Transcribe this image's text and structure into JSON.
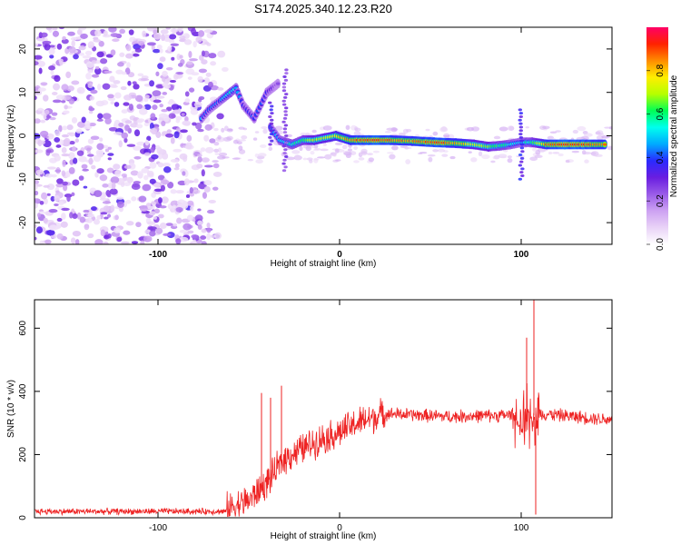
{
  "title": "S174.2025.340.12.23.R20",
  "chart_data": [
    {
      "type": "heatmap",
      "name": "spectrogram",
      "xlabel": "Height of straight line (km)",
      "ylabel": "Frequency (Hz)",
      "xlim": [
        -168,
        150
      ],
      "ylim": [
        -25,
        25
      ],
      "xticks": [
        -100,
        0,
        100
      ],
      "yticks": [
        -20,
        -10,
        0,
        10,
        20
      ],
      "colorbar": {
        "label": "Normalized spectral amplitude",
        "range": [
          0,
          1
        ],
        "ticks": [
          0.0,
          0.2,
          0.4,
          0.6,
          0.8
        ],
        "colormap": [
          "#ffffff",
          "#e9d3f7",
          "#cda2f2",
          "#9a5ce8",
          "#6a1ee0",
          "#2a2aff",
          "#00aaff",
          "#00ffee",
          "#00ff55",
          "#b6ff00",
          "#ffee00",
          "#ff8c00",
          "#ff2200",
          "#ff0066"
        ]
      },
      "noise_region": {
        "x": [
          -168,
          -62
        ],
        "freq": [
          -25,
          25
        ],
        "amplitude": [
          0.05,
          0.35
        ]
      },
      "ridge": [
        {
          "x": -76,
          "freq": 4,
          "amp": 0.45
        },
        {
          "x": -72,
          "freq": 6,
          "amp": 0.42
        },
        {
          "x": -66,
          "freq": 8,
          "amp": 0.4
        },
        {
          "x": -60,
          "freq": 10,
          "amp": 0.55
        },
        {
          "x": -57,
          "freq": 11,
          "amp": 0.5
        },
        {
          "x": -53,
          "freq": 7,
          "amp": 0.35
        },
        {
          "x": -47,
          "freq": 4,
          "amp": 0.4
        },
        {
          "x": -40,
          "freq": 10,
          "amp": 0.35
        },
        {
          "x": -34,
          "freq": 12,
          "amp": 0.25
        },
        {
          "x": -38,
          "freq": 2,
          "amp": 0.45
        },
        {
          "x": -33,
          "freq": -1,
          "amp": 0.5
        },
        {
          "x": -26,
          "freq": -2,
          "amp": 0.58
        },
        {
          "x": -20,
          "freq": -1,
          "amp": 0.62
        },
        {
          "x": -14,
          "freq": -1,
          "amp": 0.7
        },
        {
          "x": -8,
          "freq": -0.5,
          "amp": 0.72
        },
        {
          "x": -2,
          "freq": 0,
          "amp": 0.78
        },
        {
          "x": 6,
          "freq": -1,
          "amp": 0.85
        },
        {
          "x": 16,
          "freq": -1,
          "amp": 0.92
        },
        {
          "x": 28,
          "freq": -1,
          "amp": 0.88
        },
        {
          "x": 40,
          "freq": -1.2,
          "amp": 0.84
        },
        {
          "x": 52,
          "freq": -1.5,
          "amp": 0.9
        },
        {
          "x": 64,
          "freq": -1.7,
          "amp": 0.85
        },
        {
          "x": 74,
          "freq": -2,
          "amp": 0.72
        },
        {
          "x": 82,
          "freq": -2.5,
          "amp": 0.68
        },
        {
          "x": 88,
          "freq": -2.3,
          "amp": 0.6
        },
        {
          "x": 94,
          "freq": -2,
          "amp": 0.55
        },
        {
          "x": 100,
          "freq": -1.5,
          "amp": 0.5
        },
        {
          "x": 106,
          "freq": -1.5,
          "amp": 0.6
        },
        {
          "x": 114,
          "freq": -2,
          "amp": 0.85
        },
        {
          "x": 124,
          "freq": -2,
          "amp": 0.92
        },
        {
          "x": 134,
          "freq": -2,
          "amp": 0.9
        },
        {
          "x": 146,
          "freq": -2,
          "amp": 0.85
        }
      ]
    },
    {
      "type": "line",
      "name": "snr",
      "xlabel": "Height of straight line (km)",
      "ylabel": "SNR (10 * v/v)",
      "xlim": [
        -168,
        150
      ],
      "ylim": [
        0,
        690
      ],
      "xticks": [
        -100,
        0,
        100
      ],
      "yticks": [
        0,
        200,
        400,
        600
      ],
      "color": "#ee2222",
      "series": [
        {
          "x": [
            -168,
            -140,
            -110,
            -80,
            -62
          ],
          "baseline": 20,
          "noise": 12
        },
        {
          "x": [
            -62,
            -50,
            -40,
            -30,
            -20,
            -10,
            0,
            10,
            20,
            25
          ],
          "baseline": [
            30,
            55,
            110,
            190,
            220,
            250,
            270,
            300,
            320,
            330
          ],
          "noise": 60
        },
        {
          "x": [
            25,
            60,
            95,
            100,
            105,
            110,
            150
          ],
          "baseline": [
            330,
            320,
            325,
            280,
            320,
            330,
            310
          ],
          "noise": 25
        }
      ],
      "peaks": [
        {
          "x": -43,
          "y": 395
        },
        {
          "x": -38,
          "y": 380
        },
        {
          "x": -32,
          "y": 418
        },
        {
          "x": 103,
          "y": 570
        },
        {
          "x": 107,
          "y": 690
        },
        {
          "x": 108,
          "y": 10
        }
      ]
    }
  ]
}
